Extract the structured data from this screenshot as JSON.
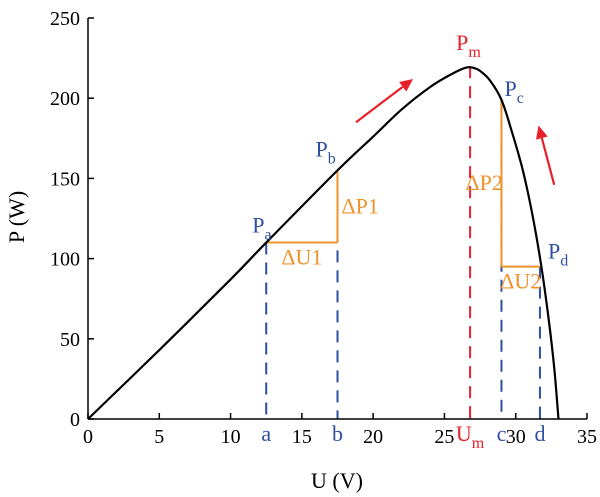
{
  "chart_data": {
    "type": "line",
    "xlabel": "U (V)",
    "ylabel": "P (W)",
    "xlim": [
      0,
      35
    ],
    "ylim": [
      0,
      250
    ],
    "xticks": [
      0,
      5,
      10,
      15,
      20,
      25,
      30,
      35
    ],
    "yticks": [
      0,
      50,
      100,
      150,
      200,
      250
    ],
    "grid": false,
    "series": [
      {
        "color": "#000000",
        "x": [
          0,
          5,
          10,
          12.5,
          17.5,
          20,
          22,
          24,
          25.5,
          26.5,
          27,
          27.5,
          28.2,
          29,
          29.7,
          30.5,
          31.2,
          31.8,
          32.3,
          32.7,
          33
        ],
        "y": [
          0,
          43,
          87,
          110,
          155,
          176,
          193,
          207,
          215,
          219,
          219,
          217,
          211,
          199,
          180,
          155,
          126,
          95,
          63,
          32,
          0
        ]
      }
    ],
    "points": [
      {
        "id": "Pa",
        "label": "P",
        "sub": "a",
        "x": 12.5,
        "y": 110,
        "color": "#2e4fa3"
      },
      {
        "id": "Pb",
        "label": "P",
        "sub": "b",
        "x": 17.5,
        "y": 155,
        "color": "#2e4fa3"
      },
      {
        "id": "Pm",
        "label": "P",
        "sub": "m",
        "x": 26.8,
        "y": 220,
        "color": "#e8202a"
      },
      {
        "id": "Pc",
        "label": "P",
        "sub": "c",
        "x": 29,
        "y": 199,
        "color": "#2e4fa3"
      },
      {
        "id": "Pd",
        "label": "P",
        "sub": "d",
        "x": 31.7,
        "y": 95,
        "color": "#2e4fa3"
      }
    ],
    "vertical_guides": [
      {
        "x": 12.5,
        "y_top": 110,
        "color": "#2e4fa3",
        "label": "a"
      },
      {
        "x": 17.5,
        "y_top": 155,
        "color": "#2e4fa3",
        "label": "b"
      },
      {
        "x": 26.8,
        "y_top": 220,
        "color": "#e8202a",
        "label": "U",
        "sub": "m"
      },
      {
        "x": 29,
        "y_top": 199,
        "color": "#2e4fa3",
        "label": "c"
      },
      {
        "x": 31.7,
        "y_top": 95,
        "color": "#2e4fa3",
        "label": "d"
      }
    ],
    "deltas": [
      {
        "du_label": "ΔU1",
        "dp_label": "ΔP1",
        "x0": 12.5,
        "x1": 17.5,
        "y0": 110,
        "y1": 155,
        "dp_side": "right",
        "color": "#f0922b"
      },
      {
        "du_label": "ΔU2",
        "dp_label": "ΔP2",
        "x0": 29,
        "x1": 31.7,
        "y0": 95,
        "y1": 199,
        "dp_side": "left",
        "color": "#f0922b"
      }
    ],
    "arrows": [
      {
        "from": [
          18.8,
          185
        ],
        "to": [
          22.8,
          212
        ],
        "color": "#e8202a"
      },
      {
        "from": [
          32.7,
          146
        ],
        "to": [
          31.6,
          183
        ],
        "color": "#e8202a"
      }
    ]
  }
}
